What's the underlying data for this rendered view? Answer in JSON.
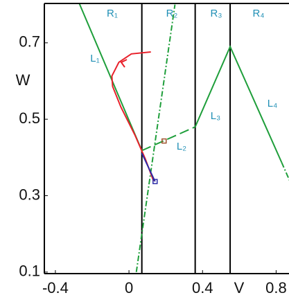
{
  "chart_data": {
    "type": "line",
    "xlabel": "V",
    "ylabel": "W",
    "xlim": [
      -0.46,
      0.87
    ],
    "ylim": [
      0.096,
      0.803
    ],
    "xticks": [
      -0.4,
      0,
      0.4,
      0.8
    ],
    "yticks": [
      0.7,
      0.5,
      0.3,
      0.1
    ],
    "vlines": [
      0.07,
      0.36,
      0.55
    ],
    "region_labels": [
      "R₁",
      "R₂",
      "R₃",
      "R₄"
    ],
    "line_labels": [
      "L₁",
      "L₂",
      "L₃",
      "L₄"
    ],
    "series": [
      {
        "color": "#1e9e3a",
        "style": "solid",
        "x": [
          -0.27,
          0.07
        ],
        "values": [
          0.803,
          0.418
        ]
      },
      {
        "color": "#1e9e3a",
        "style": "dashed",
        "x": [
          0.07,
          0.36
        ],
        "values": [
          0.418,
          0.48
        ]
      },
      {
        "color": "#1e9e3a",
        "style": "solid",
        "x": [
          0.36,
          0.55,
          0.83
        ],
        "values": [
          0.48,
          0.69,
          0.387
        ]
      },
      {
        "color": "#1e9e3a",
        "style": "dashdot",
        "x": [
          0.83,
          0.9
        ],
        "values": [
          0.387,
          0.31
        ]
      },
      {
        "color": "#1e9e3a",
        "style": "dashdot",
        "x": [
          0.04,
          0.25
        ],
        "values": [
          0.1,
          0.8
        ]
      },
      {
        "color": "#e8202a",
        "style": "solid",
        "x": [
          0.119,
          0.013,
          -0.055,
          -0.093,
          -0.089,
          -0.044,
          0.032,
          0.089,
          0.134
        ],
        "values": [
          0.676,
          0.671,
          0.649,
          0.613,
          0.586,
          0.532,
          0.459,
          0.396,
          0.338
        ]
      },
      {
        "color": "#2b2ba8",
        "style": "solid",
        "x": [
          0.07,
          0.142
        ],
        "values": [
          0.411,
          0.337
        ]
      }
    ],
    "points": [
      {
        "x": 0.142,
        "y": 0.337,
        "color": "#2b2ba8"
      },
      {
        "x": 0.191,
        "y": 0.443,
        "color": "#a0522d"
      }
    ]
  }
}
